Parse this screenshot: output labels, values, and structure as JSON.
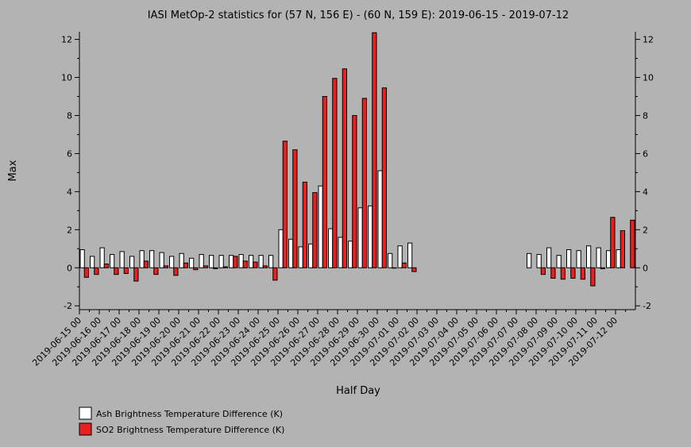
{
  "chart_data": {
    "type": "bar",
    "title": "IASI MetOp-2 statistics for (57 N, 156 E) - (60 N, 159 E): 2019-06-15 - 2019-07-12",
    "xlabel": "Half Day",
    "ylabel": "Max",
    "ylim": [
      -2.2,
      12.4
    ],
    "yticks": [
      -2,
      0,
      2,
      4,
      6,
      8,
      10,
      12
    ],
    "xticks": [
      "2019-06-15 00",
      "2019-06-16 00",
      "2019-06-17 00",
      "2019-06-18 00",
      "2019-06-19 00",
      "2019-06-20 00",
      "2019-06-21 00",
      "2019-06-22 00",
      "2019-06-23 00",
      "2019-06-24 00",
      "2019-06-25 00",
      "2019-06-26 00",
      "2019-06-27 00",
      "2019-06-28 00",
      "2019-06-29 00",
      "2019-06-30 00",
      "2019-07-01 00",
      "2019-07-02 00",
      "2019-07-03 00",
      "2019-07-04 00",
      "2019-07-05 00",
      "2019-07-06 00",
      "2019-07-07 00",
      "2019-07-08 00",
      "2019-07-09 00",
      "2019-07-10 00",
      "2019-07-11 00",
      "2019-07-12 00"
    ],
    "categories": [
      "2019-06-15 00",
      "2019-06-15 12",
      "2019-06-16 00",
      "2019-06-16 12",
      "2019-06-17 00",
      "2019-06-17 12",
      "2019-06-18 00",
      "2019-06-18 12",
      "2019-06-19 00",
      "2019-06-19 12",
      "2019-06-20 00",
      "2019-06-20 12",
      "2019-06-21 00",
      "2019-06-21 12",
      "2019-06-22 00",
      "2019-06-22 12",
      "2019-06-23 00",
      "2019-06-23 12",
      "2019-06-24 00",
      "2019-06-24 12",
      "2019-06-25 00",
      "2019-06-25 12",
      "2019-06-26 00",
      "2019-06-26 12",
      "2019-06-27 00",
      "2019-06-27 12",
      "2019-06-28 00",
      "2019-06-28 12",
      "2019-06-29 00",
      "2019-06-29 12",
      "2019-06-30 00",
      "2019-06-30 12",
      "2019-07-01 00",
      "2019-07-01 12",
      "2019-07-02 00",
      "2019-07-02 12",
      "2019-07-03 00",
      "2019-07-03 12",
      "2019-07-04 00",
      "2019-07-04 12",
      "2019-07-05 00",
      "2019-07-05 12",
      "2019-07-06 00",
      "2019-07-06 12",
      "2019-07-07 00",
      "2019-07-07 12",
      "2019-07-08 00",
      "2019-07-08 12",
      "2019-07-09 00",
      "2019-07-09 12",
      "2019-07-10 00",
      "2019-07-10 12",
      "2019-07-11 00",
      "2019-07-11 12",
      "2019-07-12 00",
      "2019-07-12 12"
    ],
    "series": [
      {
        "name": "Ash Brightness Temperature Difference (K)",
        "color": "#ffffff",
        "values": [
          0.95,
          0.6,
          1.05,
          0.7,
          0.85,
          0.6,
          0.9,
          0.9,
          0.8,
          0.6,
          0.75,
          0.5,
          0.7,
          0.65,
          0.65,
          0.65,
          0.7,
          0.65,
          0.65,
          0.65,
          2.0,
          1.5,
          1.1,
          1.25,
          4.3,
          2.05,
          1.6,
          1.4,
          3.15,
          3.25,
          5.1,
          0.75,
          1.15,
          1.3,
          null,
          null,
          null,
          null,
          null,
          null,
          null,
          null,
          null,
          null,
          null,
          0.75,
          0.7,
          1.05,
          0.65,
          0.95,
          0.9,
          1.15,
          1.05,
          0.9,
          0.95,
          null
        ]
      },
      {
        "name": "SO2 Brightness Temperature Difference (K)",
        "color": "#e82020",
        "values": [
          -0.5,
          -0.35,
          0.2,
          -0.35,
          -0.3,
          -0.7,
          0.35,
          -0.35,
          0.1,
          -0.4,
          0.25,
          -0.1,
          0.1,
          -0.05,
          0.05,
          0.6,
          0.35,
          0.3,
          0.1,
          -0.65,
          6.65,
          6.2,
          4.5,
          3.95,
          9.0,
          9.95,
          10.45,
          8.0,
          8.9,
          12.35,
          9.45,
          0.0,
          0.25,
          -0.2,
          null,
          null,
          null,
          null,
          null,
          null,
          null,
          null,
          null,
          null,
          null,
          null,
          -0.35,
          -0.55,
          -0.6,
          -0.55,
          -0.6,
          -0.95,
          -0.05,
          2.65,
          1.95,
          2.5
        ]
      }
    ],
    "legend": {
      "position": "bottom-left",
      "entries": [
        {
          "label": "Ash Brightness Temperature Difference (K)",
          "color": "#ffffff"
        },
        {
          "label": "SO2 Brightness Temperature Difference (K)",
          "color": "#e82020"
        }
      ]
    },
    "grid": false,
    "right_axis_mirrored": true
  }
}
